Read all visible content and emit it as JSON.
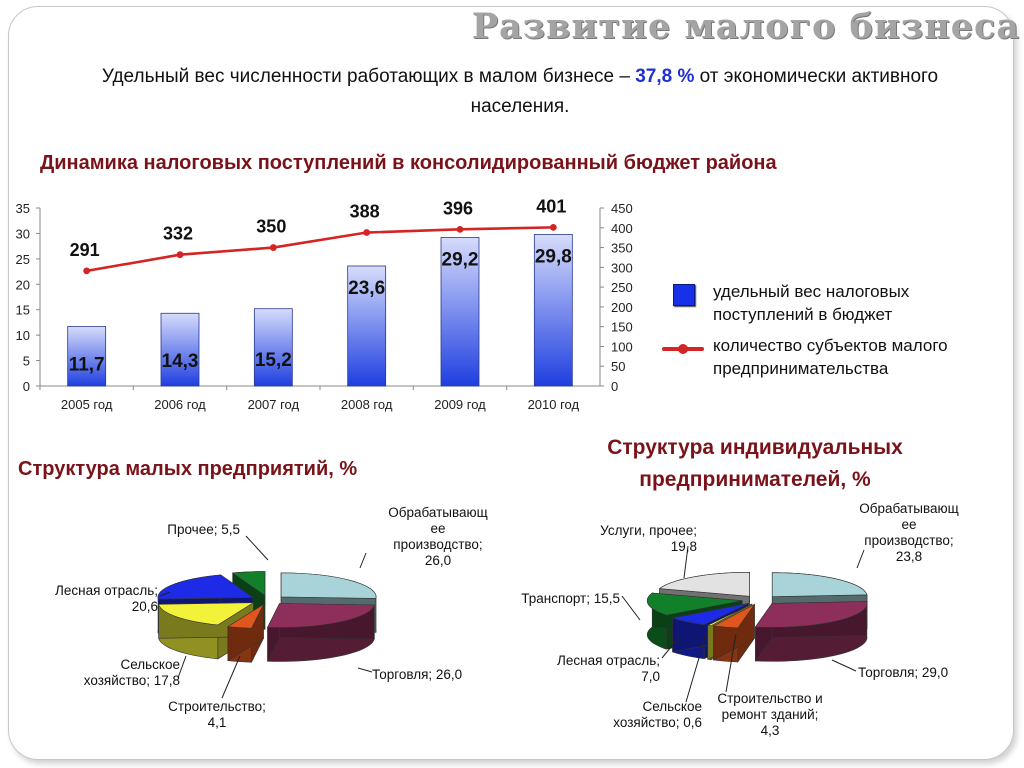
{
  "slide": {
    "title": "Развитие малого бизнеса",
    "subtitle_before": "Удельный вес численности работающих в малом бизнесе –",
    "subtitle_pct": "37,8 %",
    "subtitle_after": "от экономически активного населения."
  },
  "headings": {
    "dynamics": "Динамика налоговых поступлений в консолидированный бюджет района",
    "small_enterprises": "Структура  малых  предприятий, %",
    "individual_entrepreneurs": "Структура  индивидуальных предпринимателей, %"
  },
  "chart_data": [
    {
      "type": "bar",
      "categories": [
        "2005 год",
        "2006 год",
        "2007 год",
        "2008 год",
        "2009 год",
        "2010 год"
      ],
      "series": [
        {
          "name": "удельный вес налоговых поступлений в бюджет",
          "type": "bar",
          "axis": "left",
          "values": [
            11.7,
            14.3,
            15.2,
            23.6,
            29.2,
            29.8
          ],
          "labels": [
            "11,7",
            "14,3",
            "15,2",
            "23,6",
            "29,2",
            "29,8"
          ],
          "color": "#1f3fe0"
        },
        {
          "name": "количество субъектов малого предпринимательства",
          "type": "line",
          "axis": "right",
          "values": [
            291,
            332,
            350,
            388,
            396,
            401
          ],
          "labels": [
            "291",
            "332",
            "350",
            "388",
            "396",
            "401"
          ],
          "color": "#d42424"
        }
      ],
      "y_left": {
        "min": 0,
        "max": 35,
        "step": 5,
        "ticks": [
          "0",
          "5",
          "10",
          "15",
          "20",
          "25",
          "30",
          "35"
        ]
      },
      "y_right": {
        "min": 0,
        "max": 450,
        "step": 50,
        "ticks": [
          "0",
          "50",
          "100",
          "150",
          "200",
          "250",
          "300",
          "350",
          "400",
          "450"
        ]
      },
      "legend_position": "right",
      "grid": false
    },
    {
      "type": "pie",
      "title": "Структура  малых  предприятий, %",
      "slices": [
        {
          "label": "Обрабатывающее производство; 26,0",
          "value": 26.0,
          "color": "#a8d3d8"
        },
        {
          "label": "Торговля; 26,0",
          "value": 26.0,
          "color": "#8d2f5a"
        },
        {
          "label": "Строительство; 4,1",
          "value": 4.1,
          "color": "#e0561c"
        },
        {
          "label": "Сельское хозяйство; 17,8",
          "value": 17.8,
          "color": "#f2f23a"
        },
        {
          "label": "Лесная отрасль; 20,6",
          "value": 20.6,
          "color": "#1d2ae6"
        },
        {
          "label": "Прочее; 5,5",
          "value": 5.5,
          "color": "#12802a"
        }
      ]
    },
    {
      "type": "pie",
      "title": "Структура  индивидуальных предпринимателей, %",
      "slices": [
        {
          "label": "Обрабатывающее производство; 23,8",
          "value": 23.8,
          "color": "#a8d3d8"
        },
        {
          "label": "Торговля; 29,0",
          "value": 29.0,
          "color": "#8d2f5a"
        },
        {
          "label": "Строительство и ремонт зданий; 4,3",
          "value": 4.3,
          "color": "#e0561c"
        },
        {
          "label": "Сельское хозяйство; 0,6",
          "value": 0.6,
          "color": "#f2f23a"
        },
        {
          "label": "Лесная отрасль; 7,0",
          "value": 7.0,
          "color": "#1d2ae6"
        },
        {
          "label": "Транспорт; 15,5",
          "value": 15.5,
          "color": "#12802a"
        },
        {
          "label": "Услуги, прочее; 19,8",
          "value": 19.8,
          "color": "#e2e2e2"
        }
      ]
    }
  ],
  "pie_labels": {
    "small": {
      "manufacturing": [
        "Обрабатывающ",
        "ее",
        "производство;",
        "26,0"
      ],
      "trade": [
        "Торговля; 26,0"
      ],
      "construction": [
        "Строительство;",
        "4,1"
      ],
      "agriculture": [
        "Сельское",
        "хозяйство; 17,8"
      ],
      "forestry": [
        "Лесная отрасль;",
        "20,6"
      ],
      "other": [
        "Прочее; 5,5"
      ]
    },
    "individual": {
      "manufacturing": [
        "Обрабатывающ",
        "ее",
        "производство;",
        "23,8"
      ],
      "trade": [
        "Торговля; 29,0"
      ],
      "construction": [
        "Строительство и",
        "ремонт зданий;",
        "4,3"
      ],
      "agriculture": [
        "Сельское",
        "хозяйство; 0,6"
      ],
      "forestry": [
        "Лесная отрасль;",
        "7,0"
      ],
      "transport": [
        "Транспорт; 15,5"
      ],
      "services": [
        "Услуги, прочее;",
        "19,8"
      ]
    }
  }
}
